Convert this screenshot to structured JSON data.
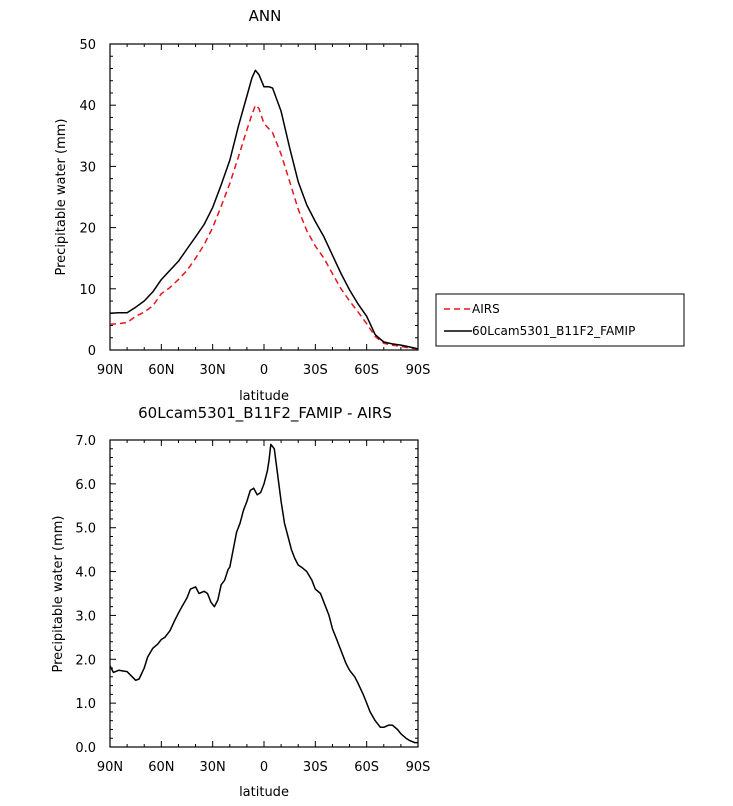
{
  "chart_data": [
    {
      "type": "line",
      "title": "ANN",
      "xlabel": "latitude",
      "ylabel": "Precipitable water (mm)",
      "xlim": [
        -90,
        90
      ],
      "ylim": [
        0,
        50
      ],
      "x_ticks": [
        -90,
        -60,
        -30,
        0,
        30,
        60,
        90
      ],
      "x_tick_labels": [
        "90N",
        "60N",
        "30N",
        "0",
        "30S",
        "60S",
        "90S"
      ],
      "y_ticks": [
        0,
        10,
        20,
        30,
        40,
        50
      ],
      "y_tick_labels": [
        "0",
        "10",
        "20",
        "30",
        "40",
        "50"
      ],
      "legend": {
        "placement": "right",
        "entries": [
          "AIRS",
          "60Lcam5301_B11F2_FAMIP"
        ]
      },
      "series": [
        {
          "name": "AIRS",
          "color": "#e8141c",
          "dash": "dashed",
          "x": [
            -90,
            -85,
            -80,
            -75,
            -70,
            -65,
            -60,
            -55,
            -50,
            -45,
            -40,
            -35,
            -30,
            -25,
            -20,
            -15,
            -10,
            -7,
            -5,
            -3,
            0,
            5,
            10,
            15,
            20,
            25,
            30,
            35,
            40,
            45,
            50,
            55,
            60,
            65,
            70,
            75,
            80,
            85,
            90
          ],
          "y": [
            4.2,
            4.3,
            4.5,
            5.5,
            6.2,
            7.2,
            9.2,
            10.2,
            11.5,
            13.0,
            15.0,
            17.2,
            20.0,
            23.5,
            27.2,
            31.5,
            36.0,
            38.5,
            40.0,
            39.5,
            37.0,
            35.5,
            32.0,
            27.5,
            23.0,
            19.5,
            17.0,
            15.0,
            12.5,
            10.0,
            8.0,
            6.2,
            4.3,
            2.2,
            1.1,
            0.8,
            0.6,
            0.3,
            0.2
          ]
        },
        {
          "name": "60Lcam5301_B11F2_FAMIP",
          "color": "#000000",
          "dash": "solid",
          "x": [
            -90,
            -85,
            -80,
            -75,
            -70,
            -65,
            -60,
            -55,
            -50,
            -45,
            -40,
            -35,
            -30,
            -25,
            -20,
            -15,
            -10,
            -7,
            -5,
            -3,
            0,
            3,
            5,
            10,
            15,
            20,
            25,
            30,
            35,
            40,
            45,
            50,
            55,
            60,
            65,
            70,
            75,
            80,
            85,
            90
          ],
          "y": [
            6.0,
            6.1,
            6.1,
            7.0,
            8.0,
            9.5,
            11.5,
            13.0,
            14.5,
            16.5,
            18.5,
            20.5,
            23.3,
            27.0,
            31.0,
            36.5,
            41.5,
            44.5,
            45.7,
            45.0,
            43.0,
            43.0,
            42.8,
            39.0,
            33.0,
            27.5,
            23.7,
            21.0,
            18.5,
            15.5,
            12.5,
            9.8,
            7.5,
            5.5,
            2.5,
            1.3,
            1.0,
            0.8,
            0.5,
            0.2
          ]
        }
      ]
    },
    {
      "type": "line",
      "title": "60Lcam5301_B11F2_FAMIP - AIRS",
      "xlabel": "latitude",
      "ylabel": "Precipitable water (mm)",
      "xlim": [
        -90,
        90
      ],
      "ylim": [
        0,
        7
      ],
      "x_ticks": [
        -90,
        -60,
        -30,
        0,
        30,
        60,
        90
      ],
      "x_tick_labels": [
        "90N",
        "60N",
        "30N",
        "0",
        "30S",
        "60S",
        "90S"
      ],
      "y_ticks": [
        0,
        1,
        2,
        3,
        4,
        5,
        6,
        7
      ],
      "y_tick_labels": [
        "0.0",
        "1.0",
        "2.0",
        "3.0",
        "4.0",
        "5.0",
        "6.0",
        "7.0"
      ],
      "series": [
        {
          "name": "60Lcam5301_B11F2_FAMIP - AIRS",
          "color": "#000000",
          "dash": "solid",
          "x": [
            -90,
            -88,
            -85,
            -80,
            -77,
            -75,
            -73,
            -70,
            -68,
            -65,
            -62,
            -60,
            -58,
            -55,
            -52,
            -50,
            -48,
            -45,
            -43,
            -40,
            -38,
            -35,
            -33,
            -31,
            -29,
            -27,
            -25,
            -23,
            -21,
            -20,
            -18,
            -16,
            -14,
            -12,
            -10,
            -8,
            -6,
            -4,
            -2,
            0,
            2,
            3,
            4,
            5,
            6,
            8,
            10,
            12,
            14,
            16,
            18,
            20,
            22,
            25,
            28,
            30,
            33,
            35,
            38,
            40,
            42,
            45,
            48,
            50,
            53,
            55,
            58,
            60,
            62,
            65,
            68,
            70,
            73,
            75,
            78,
            80,
            83,
            85,
            88,
            90
          ],
          "y": [
            1.85,
            1.7,
            1.75,
            1.72,
            1.6,
            1.52,
            1.55,
            1.8,
            2.05,
            2.25,
            2.35,
            2.45,
            2.5,
            2.65,
            2.9,
            3.05,
            3.2,
            3.4,
            3.6,
            3.65,
            3.5,
            3.55,
            3.5,
            3.3,
            3.2,
            3.35,
            3.7,
            3.8,
            4.05,
            4.1,
            4.5,
            4.9,
            5.1,
            5.4,
            5.6,
            5.85,
            5.9,
            5.75,
            5.8,
            6.0,
            6.3,
            6.55,
            6.9,
            6.85,
            6.8,
            6.2,
            5.6,
            5.1,
            4.8,
            4.5,
            4.3,
            4.15,
            4.1,
            4.0,
            3.8,
            3.6,
            3.5,
            3.3,
            3.0,
            2.7,
            2.5,
            2.2,
            1.9,
            1.75,
            1.6,
            1.45,
            1.2,
            1.0,
            0.8,
            0.6,
            0.45,
            0.45,
            0.5,
            0.5,
            0.4,
            0.3,
            0.2,
            0.15,
            0.1,
            0.1
          ]
        }
      ]
    }
  ]
}
